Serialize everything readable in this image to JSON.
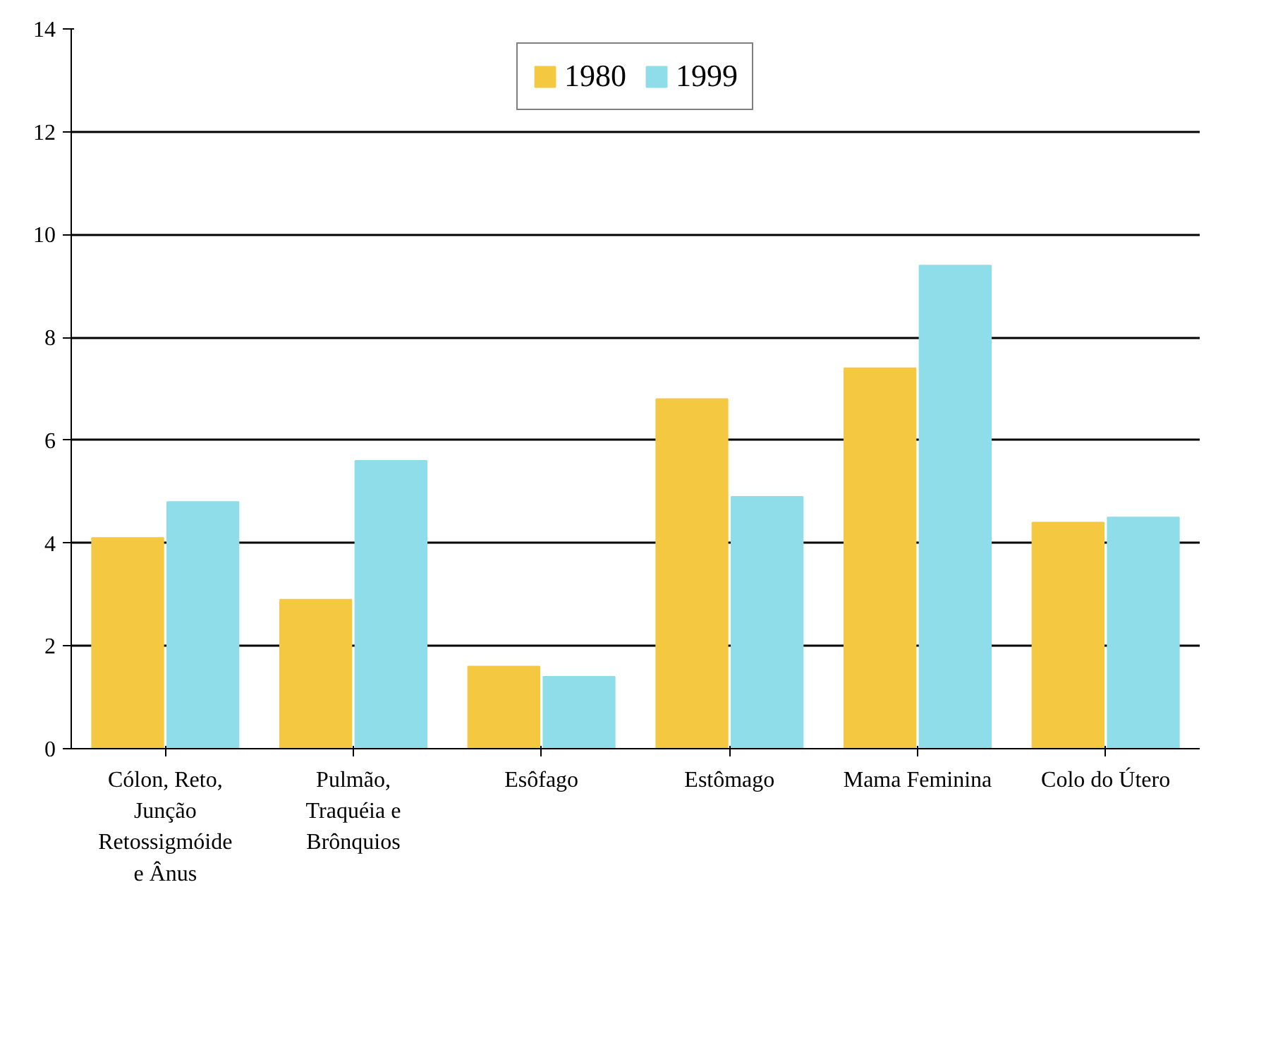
{
  "chart_data": {
    "type": "bar",
    "categories": [
      "Cólon, Reto, Junção Retossigmóide e Ânus",
      "Pulmão, Traquéia e Brônquios",
      "Esôfago",
      "Estômago",
      "Mama Feminina",
      "Colo do Útero"
    ],
    "series": [
      {
        "name": "1980",
        "color": "#f5c842",
        "values": [
          4.1,
          2.9,
          1.6,
          6.8,
          7.4,
          4.4
        ]
      },
      {
        "name": "1999",
        "color": "#8fdde8",
        "values": [
          4.8,
          5.6,
          1.4,
          4.9,
          9.4,
          4.5
        ]
      }
    ],
    "ylim": [
      0,
      14
    ],
    "yticks": [
      0,
      2,
      4,
      6,
      8,
      10,
      12,
      14
    ],
    "grid": "y",
    "legend": "top"
  }
}
